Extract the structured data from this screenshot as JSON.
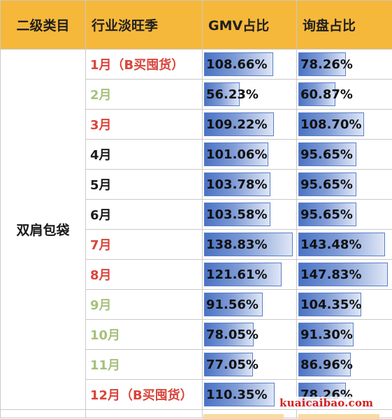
{
  "headers": {
    "category": "二级类目",
    "season": "行业淡旺季",
    "gmv": "GMV占比",
    "inquiry": "询盘占比"
  },
  "category": "双肩包袋",
  "rows": [
    {
      "month": "1月（B买囤货）",
      "gmv_label": "108.66%",
      "gmv": 108.66,
      "inq_label": "78.26%",
      "inq": 78.26,
      "color": "#d9443a"
    },
    {
      "month": "2月",
      "gmv_label": "56.23%",
      "gmv": 56.23,
      "inq_label": "60.87%",
      "inq": 60.87,
      "color": "#a7c07c"
    },
    {
      "month": "3月",
      "gmv_label": "109.22%",
      "gmv": 109.22,
      "inq_label": "108.70%",
      "inq": 108.7,
      "color": "#d9443a"
    },
    {
      "month": "4月",
      "gmv_label": "101.06%",
      "gmv": 101.06,
      "inq_label": "95.65%",
      "inq": 95.65,
      "color": "#1a1a1a"
    },
    {
      "month": "5月",
      "gmv_label": "103.78%",
      "gmv": 103.78,
      "inq_label": "95.65%",
      "inq": 95.65,
      "color": "#1a1a1a"
    },
    {
      "month": "6月",
      "gmv_label": "103.58%",
      "gmv": 103.58,
      "inq_label": "95.65%",
      "inq": 95.65,
      "color": "#1a1a1a"
    },
    {
      "month": "7月",
      "gmv_label": "138.83%",
      "gmv": 138.83,
      "inq_label": "143.48%",
      "inq": 143.48,
      "color": "#d9443a"
    },
    {
      "month": "8月",
      "gmv_label": "121.61%",
      "gmv": 121.61,
      "inq_label": "147.83%",
      "inq": 147.83,
      "color": "#d9443a"
    },
    {
      "month": "9月",
      "gmv_label": "91.56%",
      "gmv": 91.56,
      "inq_label": "104.35%",
      "inq": 104.35,
      "color": "#a7c07c"
    },
    {
      "month": "10月",
      "gmv_label": "78.05%",
      "gmv": 78.05,
      "inq_label": "91.30%",
      "inq": 91.3,
      "color": "#a7c07c"
    },
    {
      "month": "11月",
      "gmv_label": "77.05%",
      "gmv": 77.05,
      "inq_label": "86.96%",
      "inq": 86.96,
      "color": "#a7c07c"
    },
    {
      "month": "12月（B买囤货）",
      "gmv_label": "110.35%",
      "gmv": 110.35,
      "inq_label": "78.26%",
      "inq": 78.26,
      "color": "#d9443a"
    }
  ],
  "watermark": "kuaicaibao.com",
  "colors": {
    "header_bg": "#f6b83a",
    "bar_blue": "#4a73c4",
    "peak_red": "#d9443a",
    "offseason_green": "#a7c07c"
  }
}
